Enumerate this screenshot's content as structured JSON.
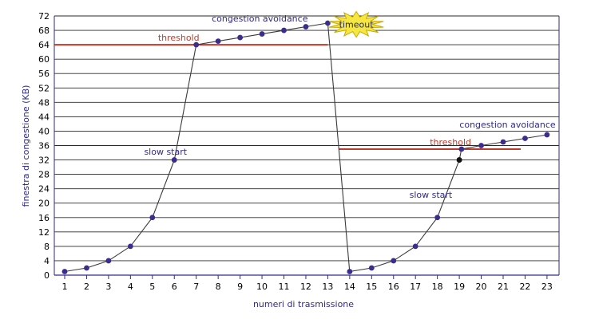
{
  "chart_data": {
    "type": "line",
    "xlabel": "numeri di trasmissione",
    "ylabel": "finestra di congestione (KB)",
    "xlim": [
      1,
      23
    ],
    "ylim": [
      0,
      72
    ],
    "x_ticks": [
      1,
      2,
      3,
      4,
      5,
      6,
      7,
      8,
      9,
      10,
      11,
      12,
      13,
      14,
      15,
      16,
      17,
      18,
      19,
      20,
      21,
      22,
      23
    ],
    "y_ticks": [
      0,
      4,
      8,
      12,
      16,
      20,
      24,
      28,
      32,
      36,
      40,
      44,
      48,
      52,
      56,
      60,
      64,
      68,
      72
    ],
    "grid": "horizontal",
    "series": [
      {
        "points": [
          [
            1,
            1
          ],
          [
            2,
            2
          ],
          [
            3,
            4
          ],
          [
            4,
            8
          ],
          [
            5,
            16
          ],
          [
            6,
            32
          ],
          [
            7,
            64
          ],
          [
            8,
            65
          ],
          [
            9,
            66
          ],
          [
            10,
            67
          ],
          [
            11,
            68
          ],
          [
            12,
            69
          ],
          [
            13,
            70
          ],
          [
            14,
            1
          ],
          [
            15,
            2
          ],
          [
            16,
            4
          ],
          [
            17,
            8
          ],
          [
            18,
            16
          ],
          [
            19,
            32
          ],
          [
            19.1,
            35
          ],
          [
            20,
            36
          ],
          [
            21,
            37
          ],
          [
            22,
            38
          ],
          [
            23,
            39
          ]
        ],
        "highlight_point": [
          19,
          32
        ]
      }
    ],
    "thresholds": [
      {
        "label": "threshold",
        "y": 64,
        "x_start": 0.5,
        "x_end": 13
      },
      {
        "label": "threshold",
        "y": 35,
        "x_start": 13.5,
        "x_end": 21.8
      }
    ],
    "annotations": [
      {
        "text": "congestion avoidance",
        "x": 9.9,
        "y": 70.5
      },
      {
        "text": "slow start",
        "x": 5.6,
        "y": 33.5
      },
      {
        "text": "slow start",
        "x": 17.7,
        "y": 21.5
      },
      {
        "text": "congestion avoidance",
        "x": 21.2,
        "y": 41
      }
    ],
    "timeout": {
      "text": "timeout",
      "x": 14.3,
      "y": 71
    },
    "colors": {
      "line": "#3a3a3a",
      "point": "#3b2c8e",
      "highlight_point": "#111111",
      "threshold": "#c0392b",
      "axis_text": "#2e2a8f",
      "burst_fill": "#f5e642",
      "burst_stroke": "#c9a800",
      "grid": "#2a2a2a",
      "frame": "#2e2a8f"
    }
  }
}
